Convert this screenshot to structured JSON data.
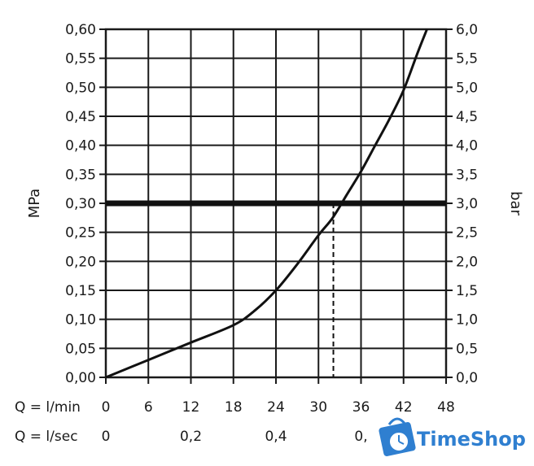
{
  "chart_data": {
    "type": "line",
    "x_unit_label": "Q = l/min",
    "x_ticks": [
      0,
      6,
      12,
      18,
      24,
      30,
      36,
      42,
      48
    ],
    "x2_unit_label": "Q = l/sec",
    "x2_ticks": [
      {
        "value": 0,
        "label": "0"
      },
      {
        "value": 0.2,
        "label": "0,2"
      },
      {
        "value": 0.4,
        "label": "0,4"
      },
      {
        "value": 0.6,
        "label": "0,"
      }
    ],
    "y_left_label": "MPa",
    "y_left_ticks": [
      "0,00",
      "0,05",
      "0,10",
      "0,15",
      "0,20",
      "0,25",
      "0,30",
      "0,35",
      "0,40",
      "0,45",
      "0,50",
      "0,55",
      "0,60"
    ],
    "y_right_label": "bar",
    "y_right_ticks": [
      "0,0",
      "0,5",
      "1,0",
      "1,5",
      "2,0",
      "2,5",
      "3,0",
      "3,5",
      "4,0",
      "4,5",
      "5,0",
      "5,5",
      "6,0"
    ],
    "xlim": [
      0,
      48
    ],
    "ylim": [
      0,
      0.6
    ],
    "grid": true,
    "series": [
      {
        "x": [
          0,
          6,
          12,
          18,
          21,
          24,
          27,
          30,
          32,
          34,
          36,
          38,
          40,
          42,
          44,
          45.3
        ],
        "y": [
          0,
          0.03,
          0.06,
          0.09,
          0.115,
          0.15,
          0.195,
          0.245,
          0.275,
          0.315,
          0.355,
          0.4,
          0.445,
          0.495,
          0.56,
          0.6
        ]
      }
    ],
    "reference_line": {
      "y": 0.3
    },
    "marker": {
      "x": 32.1,
      "y": 0.3
    }
  },
  "watermark": {
    "text": "TimeShop",
    "color": "#2f7fd0"
  }
}
